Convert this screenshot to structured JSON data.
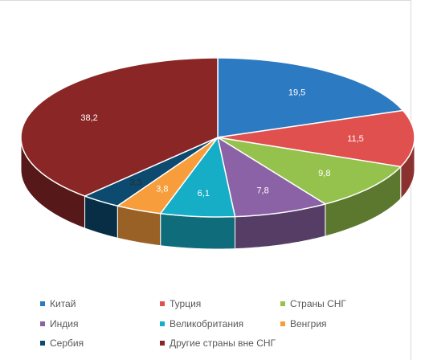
{
  "chart_data": {
    "type": "pie",
    "title": "",
    "categories": [
      "Китай",
      "Турция",
      "Страны СНГ",
      "Индия",
      "Великобритания",
      "Венгрия",
      "Сербия",
      "Другие страны вне СНГ"
    ],
    "values": [
      19.5,
      11.5,
      9.8,
      7.8,
      6.1,
      3.8,
      3.3,
      38.2
    ],
    "labels": [
      "19,5",
      "11,5",
      "9,8",
      "7,8",
      "6,1",
      "3,8",
      "3,3",
      "38,2"
    ],
    "colors": [
      "#2b7ac2",
      "#e0504e",
      "#95c24c",
      "#8a62a5",
      "#16aec7",
      "#f79d3b",
      "#0d4a6f",
      "#8b2627"
    ],
    "legend_position": "bottom",
    "style": "3d"
  }
}
